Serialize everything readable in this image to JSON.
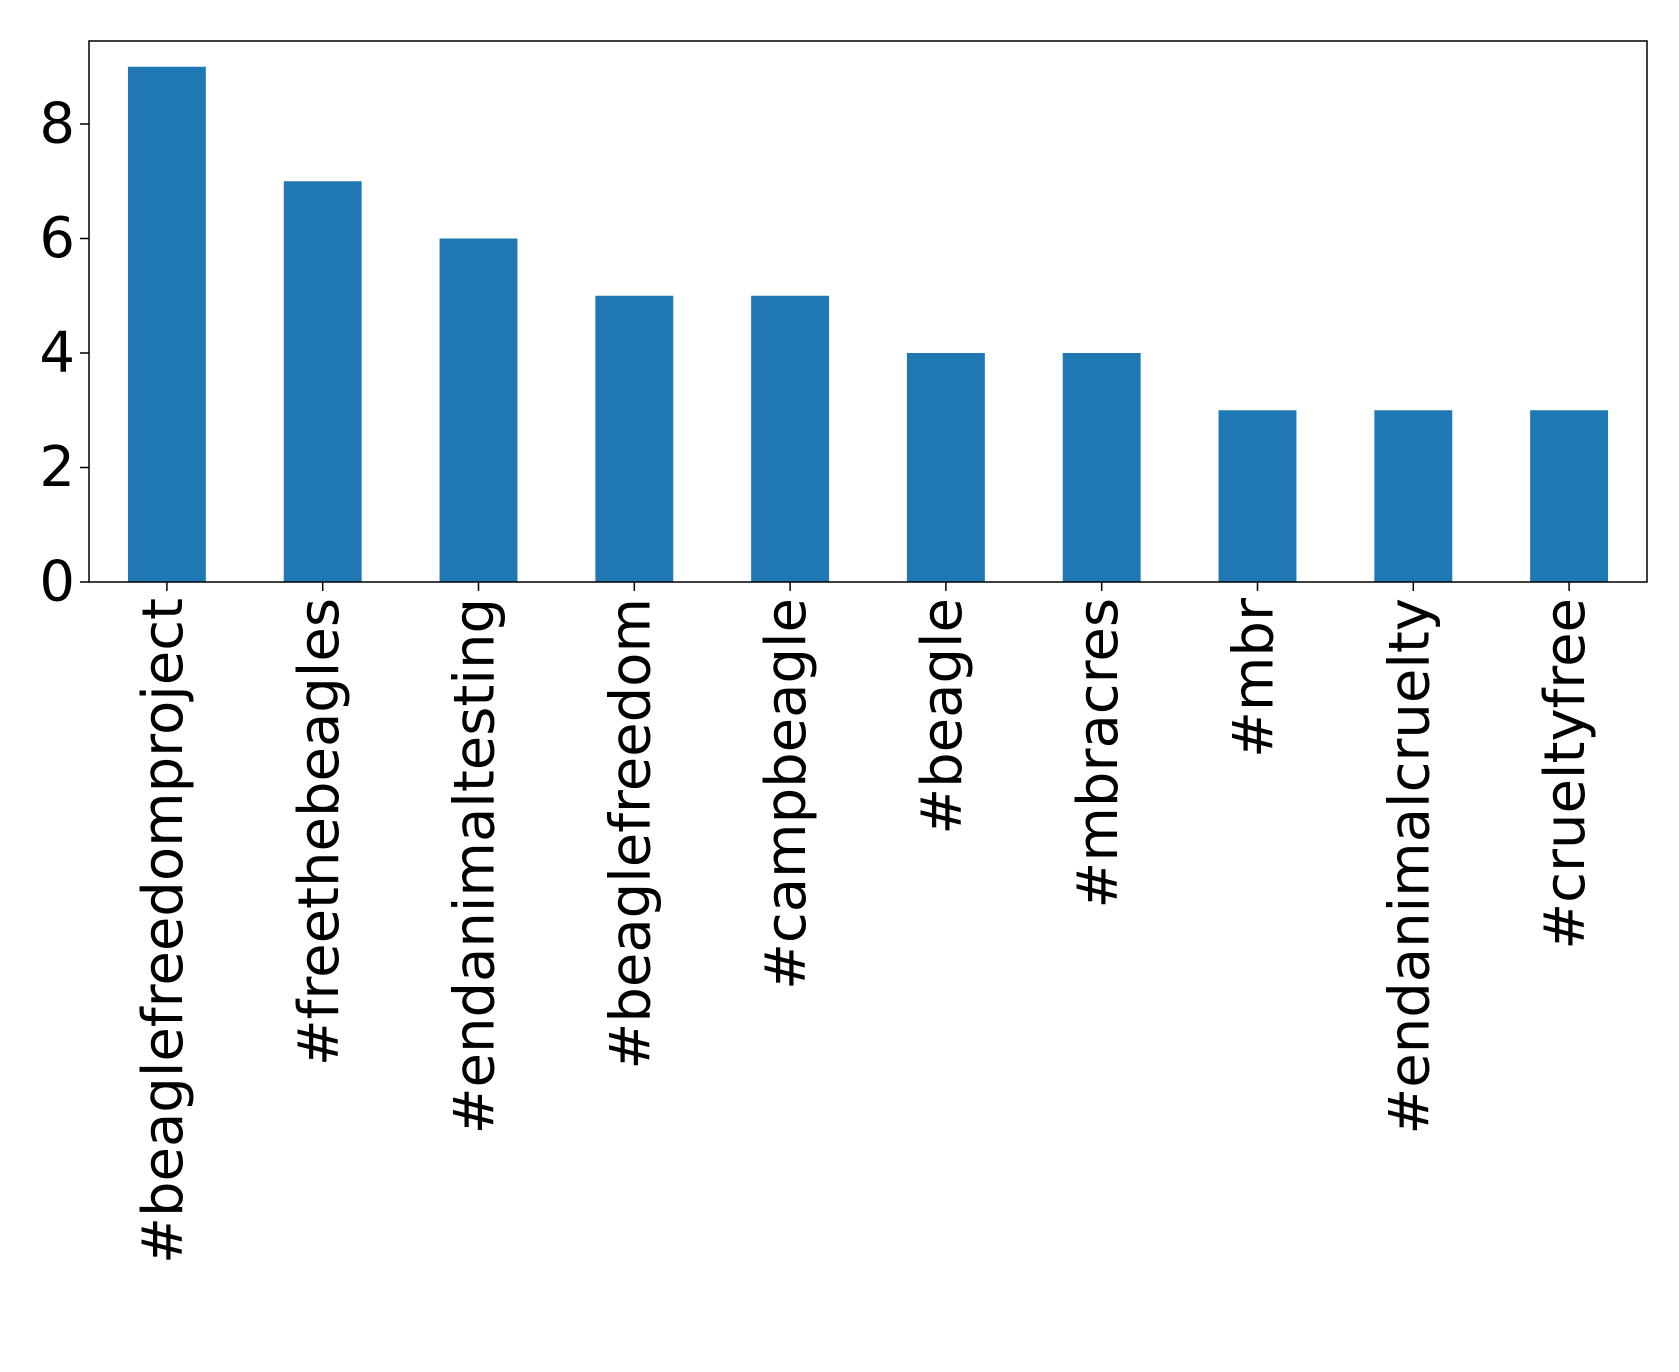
{
  "chart_data": {
    "type": "bar",
    "categories": [
      "#beaglefreedomproject",
      "#freethebeagles",
      "#endanimaltesting",
      "#beaglefreedom",
      "#campbeagle",
      "#beagle",
      "#mbracres",
      "#mbr",
      "#endanimalcruelty",
      "#crueltyfree"
    ],
    "values": [
      9,
      7,
      6,
      5,
      5,
      4,
      4,
      3,
      3,
      3
    ],
    "color": "#1f77b4",
    "ylim": [
      0,
      9.45
    ],
    "yticks": [
      0,
      2,
      4,
      6,
      8
    ],
    "grid": false
  }
}
